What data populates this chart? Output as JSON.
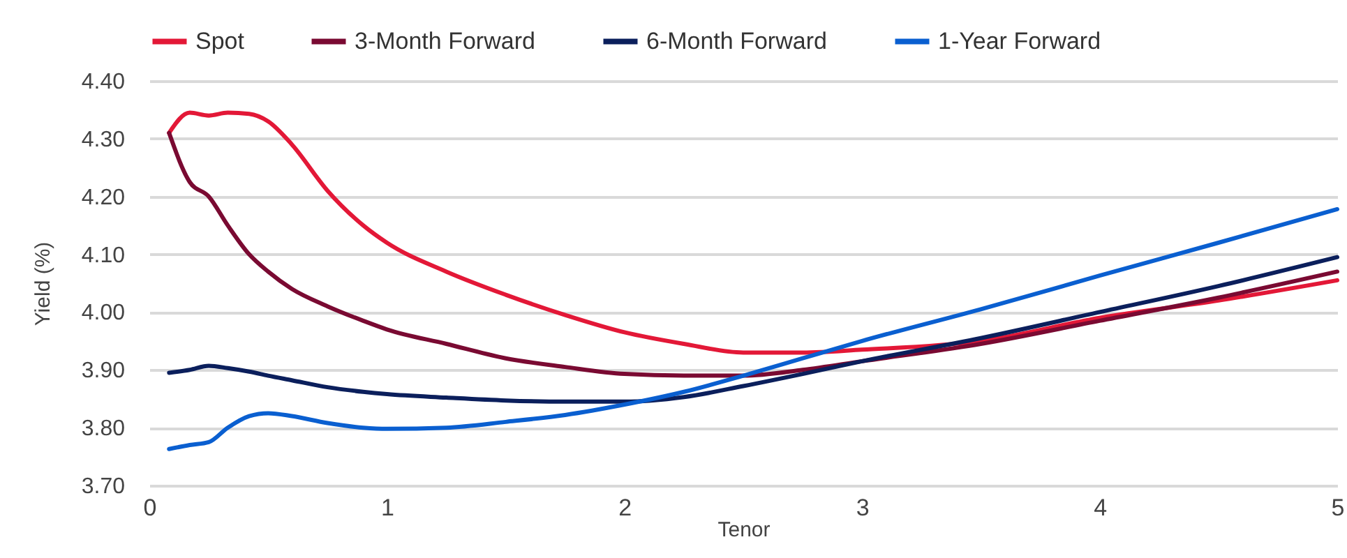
{
  "chart_data": {
    "type": "line",
    "xlabel": "Tenor",
    "ylabel": "Yield (%)",
    "xlim": [
      0,
      5
    ],
    "xticks": [
      0,
      1,
      2,
      3,
      4,
      5
    ],
    "ylim": [
      3.7,
      4.4
    ],
    "yticks": [
      {
        "value": 3.7,
        "label": "3.70"
      },
      {
        "value": 3.8,
        "label": "3.80"
      },
      {
        "value": 3.9,
        "label": "3.90"
      },
      {
        "value": 4.0,
        "label": "4.00"
      },
      {
        "value": 4.1,
        "label": "4.10"
      },
      {
        "value": 4.2,
        "label": "4.20"
      },
      {
        "value": 4.3,
        "label": "4.30"
      },
      {
        "value": 4.4,
        "label": "4.40"
      }
    ],
    "grid": "y",
    "legend": "top",
    "line_style": "solid",
    "x": [
      0.083,
      0.17,
      0.25,
      0.33,
      0.42,
      0.5,
      0.6,
      0.75,
      0.9,
      1,
      1.25,
      1.5,
      1.75,
      2,
      2.25,
      2.5,
      2.75,
      3,
      3.5,
      4,
      4.5,
      5
    ],
    "series": [
      {
        "name": "Spot",
        "color": "#e31837",
        "values": [
          4.31,
          4.345,
          4.34,
          4.345,
          4.343,
          4.33,
          4.29,
          4.21,
          4.15,
          4.12,
          4.07,
          4.03,
          3.995,
          3.965,
          3.945,
          3.93,
          3.93,
          3.935,
          3.95,
          3.99,
          4.02,
          4.055
        ]
      },
      {
        "name": "3-Month Forward",
        "color": "#7a0a32",
        "values": [
          4.31,
          4.225,
          4.2,
          4.15,
          4.1,
          4.07,
          4.04,
          4.01,
          3.985,
          3.97,
          3.945,
          3.92,
          3.905,
          3.893,
          3.89,
          3.89,
          3.9,
          3.915,
          3.945,
          3.985,
          4.025,
          4.07
        ]
      },
      {
        "name": "6-Month Forward",
        "color": "#0b1f5c",
        "values": [
          3.895,
          3.9,
          3.907,
          3.903,
          3.897,
          3.89,
          3.882,
          3.87,
          3.862,
          3.858,
          3.852,
          3.847,
          3.845,
          3.845,
          3.853,
          3.872,
          3.893,
          3.915,
          3.955,
          4.0,
          4.045,
          4.095
        ]
      },
      {
        "name": "1-Year Forward",
        "color": "#0a5fd0",
        "values": [
          3.763,
          3.77,
          3.775,
          3.8,
          3.82,
          3.825,
          3.82,
          3.808,
          3.8,
          3.798,
          3.8,
          3.81,
          3.822,
          3.84,
          3.862,
          3.89,
          3.92,
          3.95,
          4.005,
          4.063,
          4.12,
          4.178
        ]
      }
    ]
  }
}
